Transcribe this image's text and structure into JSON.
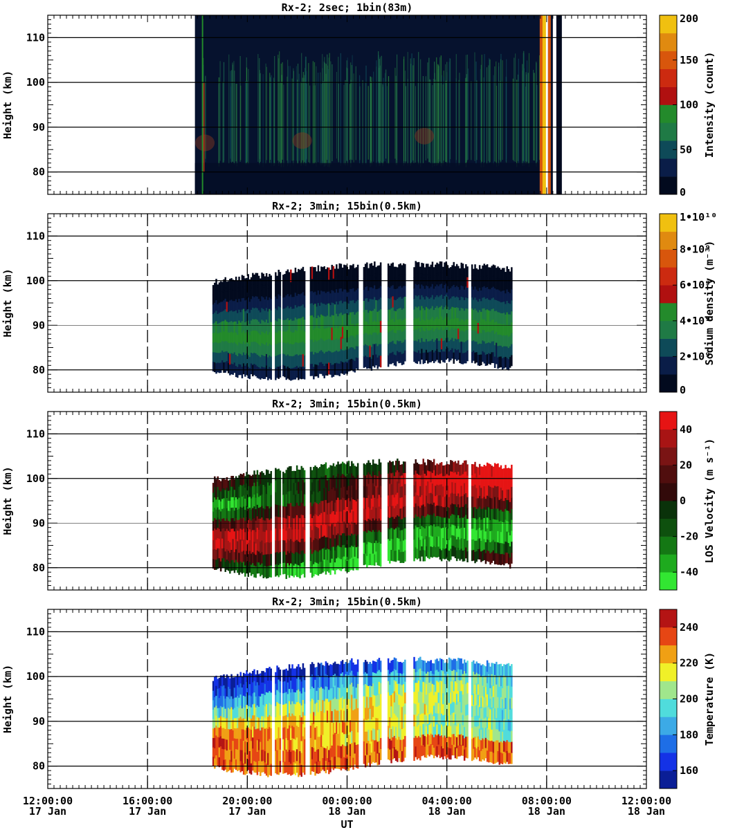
{
  "chart_data": [
    {
      "type": "heatmap",
      "title": "Rx-2;  2sec; 1bin(83m)",
      "ylabel": "Height (km)",
      "xlabel": "",
      "ylim": [
        75,
        115
      ],
      "y_ticks": [
        "80",
        "90",
        "100",
        "110"
      ],
      "xlim_hours": [
        0,
        24
      ],
      "data_span_hours": [
        5.9,
        20.25
      ],
      "colorbar": {
        "label": "Intensity (count)",
        "ticks": [
          "0",
          "50",
          "100",
          "150",
          "200"
        ],
        "range": [
          0,
          200
        ],
        "colors": [
          "#020a1e",
          "#0a1d48",
          "#0e4a58",
          "#1f7a45",
          "#238a2b",
          "#b01010",
          "#cc2a10",
          "#d8560c",
          "#e08a10",
          "#f0c010"
        ]
      },
      "features": {
        "background": "#06122e",
        "layer_peak_km": 88,
        "bright_edge_hours": 20.0
      }
    },
    {
      "type": "heatmap",
      "title": "Rx-2; 3min; 15bin(0.5km)",
      "ylabel": "Height (km)",
      "xlabel": "",
      "ylim": [
        75,
        115
      ],
      "y_ticks": [
        "80",
        "90",
        "100",
        "110"
      ],
      "data_span_hours": [
        6.6,
        18.6
      ],
      "colorbar": {
        "label": "Sodium density (m⁻³)",
        "ticks": [
          "0",
          "2•10⁹",
          "4•10⁹",
          "6•10⁹",
          "8•10⁹",
          "1•10¹⁰"
        ],
        "range": [
          0,
          10000000000.0
        ],
        "colors": [
          "#020a1e",
          "#0a1d48",
          "#0e4a58",
          "#1f7a45",
          "#238a2b",
          "#b01010",
          "#cc2a10",
          "#d8560c",
          "#e08a10",
          "#f0c010"
        ]
      },
      "layer": {
        "top_km": 103,
        "bottom_km": 80,
        "peak_km": 89
      }
    },
    {
      "type": "heatmap",
      "title": "Rx-2; 3min; 15bin(0.5km)",
      "ylabel": "Height (km)",
      "xlabel": "",
      "ylim": [
        75,
        115
      ],
      "y_ticks": [
        "80",
        "90",
        "100",
        "110"
      ],
      "data_span_hours": [
        6.6,
        18.6
      ],
      "colorbar": {
        "label": "LOS Velocity (m s⁻¹)",
        "ticks": [
          "40",
          "20",
          "0",
          "-20",
          "-40"
        ],
        "range": [
          -50,
          50
        ],
        "colors": [
          "#32e632",
          "#1eaa1e",
          "#147814",
          "#0e500e",
          "#0a320a",
          "#320a0a",
          "#500e0e",
          "#7a1414",
          "#a81414",
          "#e61414"
        ]
      }
    },
    {
      "type": "heatmap",
      "title": "Rx-2; 3min; 15bin(0.5km)",
      "ylabel": "Height (km)",
      "xlabel": "UT",
      "ylim": [
        75,
        115
      ],
      "y_ticks": [
        "80",
        "90",
        "100",
        "110"
      ],
      "data_span_hours": [
        6.6,
        18.6
      ],
      "colorbar": {
        "label": "Temperature (K)",
        "ticks": [
          "160",
          "180",
          "200",
          "220",
          "240"
        ],
        "range": [
          150,
          250
        ],
        "colors": [
          "#0a1e96",
          "#1432e6",
          "#1e6ee6",
          "#3caae6",
          "#50dcdc",
          "#a0e68c",
          "#f0f028",
          "#f0a014",
          "#e64614",
          "#b41414"
        ]
      }
    }
  ],
  "x_axis": {
    "label": "UT",
    "ticks": [
      {
        "time": "12:00:00",
        "date": "17 Jan"
      },
      {
        "time": "16:00:00",
        "date": "17 Jan"
      },
      {
        "time": "20:00:00",
        "date": "17 Jan"
      },
      {
        "time": "00:00:00",
        "date": "18 Jan"
      },
      {
        "time": "04:00:00",
        "date": "18 Jan"
      },
      {
        "time": "08:00:00",
        "date": "18 Jan"
      },
      {
        "time": "12:00:00",
        "date": "18 Jan"
      }
    ]
  }
}
